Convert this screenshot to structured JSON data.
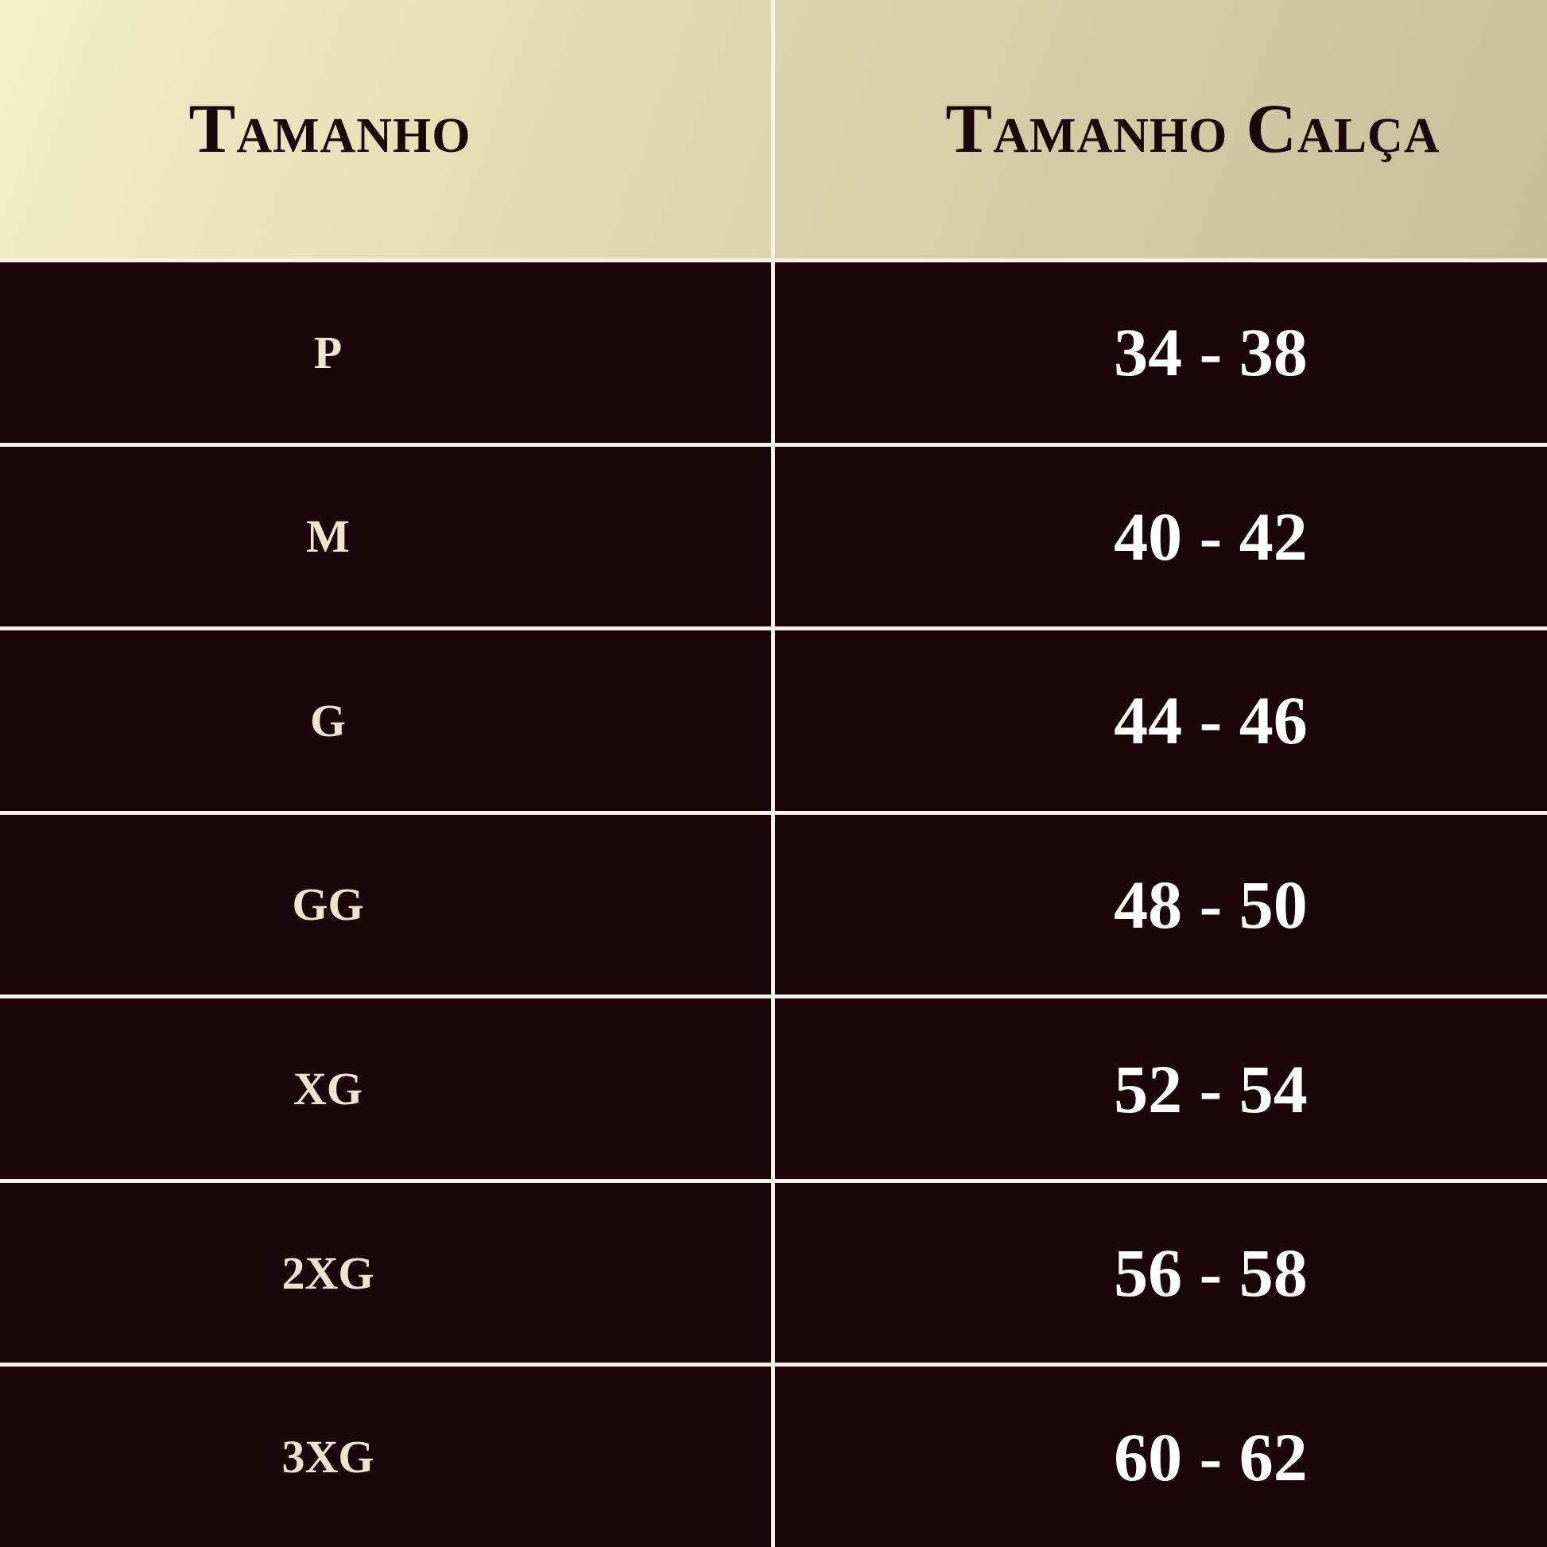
{
  "header": {
    "size_label": "Tamanho",
    "pants_label": "Tamanho Calça"
  },
  "rows": [
    {
      "size": "P",
      "pants": "34 - 38"
    },
    {
      "size": "M",
      "pants": "40 - 42"
    },
    {
      "size": "G",
      "pants": "44 - 46"
    },
    {
      "size": "GG",
      "pants": "48 - 50"
    },
    {
      "size": "XG",
      "pants": "52 - 54"
    },
    {
      "size": "2XG",
      "pants": "56 - 58"
    },
    {
      "size": "3XG",
      "pants": "60 - 62"
    }
  ],
  "colors": {
    "header_light": "#f4eecb",
    "header_dark": "#c7be99",
    "row_bg": "#1a060a",
    "divider": "#ffffff"
  }
}
